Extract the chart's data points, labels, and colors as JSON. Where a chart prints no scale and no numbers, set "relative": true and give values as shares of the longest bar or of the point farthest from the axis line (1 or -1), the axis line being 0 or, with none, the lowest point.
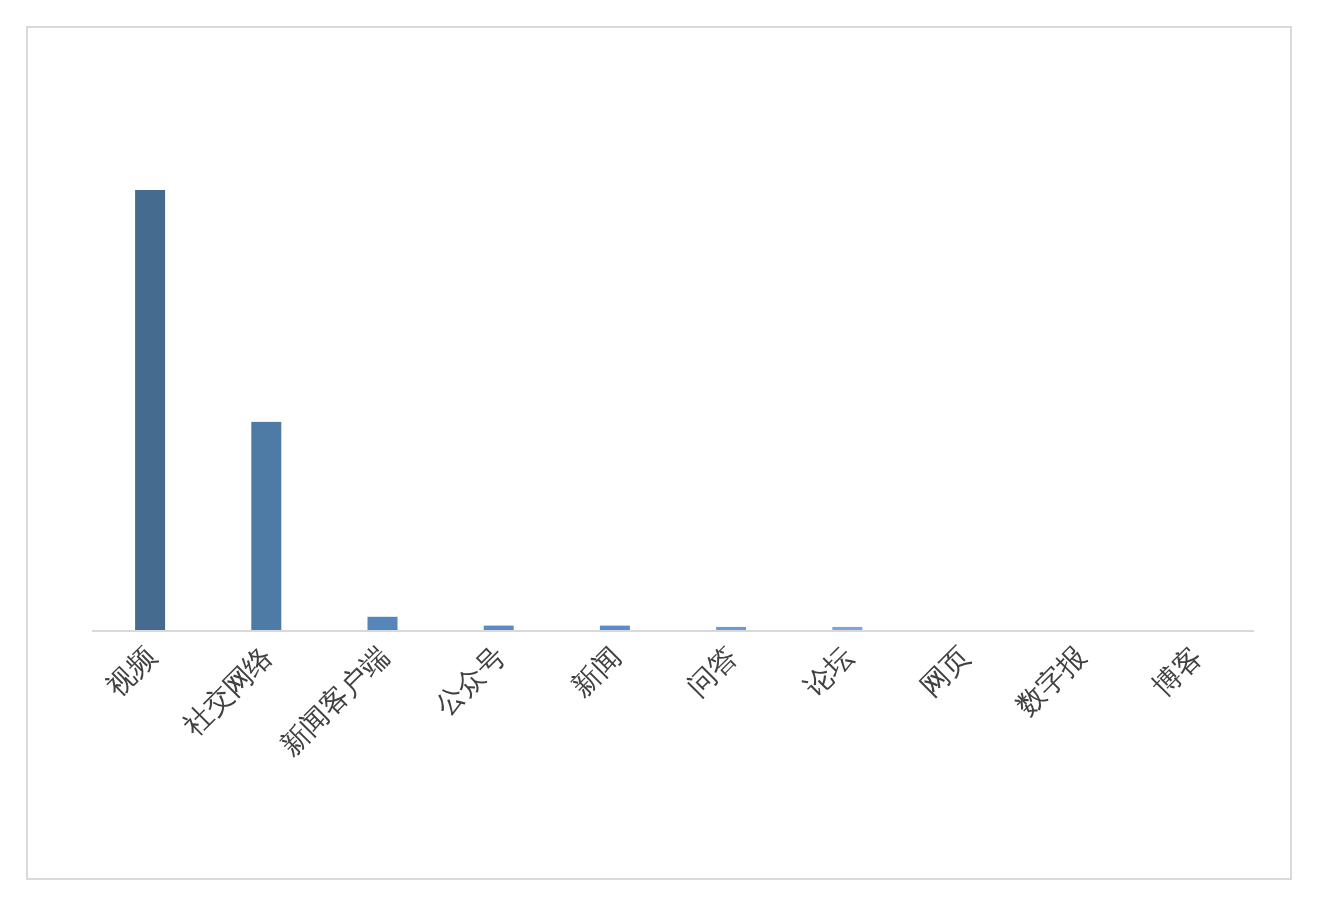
{
  "chart_data": {
    "type": "bar",
    "relative": true,
    "categories": [
      "视频",
      "社交网络",
      "新闻客户端",
      "公众号",
      "新闻",
      "问答",
      "论坛",
      "网页",
      "数字报",
      "博客"
    ],
    "values": [
      1,
      0.473,
      0.03,
      0.01,
      0.01,
      0.007,
      0.007,
      0,
      0,
      0
    ],
    "colors": [
      "#456b8e",
      "#4e7aa6",
      "#5585bb",
      "#5a8bc4",
      "#5c8dc8",
      "#6e9ad0",
      "#7ea5d5",
      "#8fb0da",
      "#9fbbdf",
      "#afc6e4"
    ],
    "grid": false
  }
}
